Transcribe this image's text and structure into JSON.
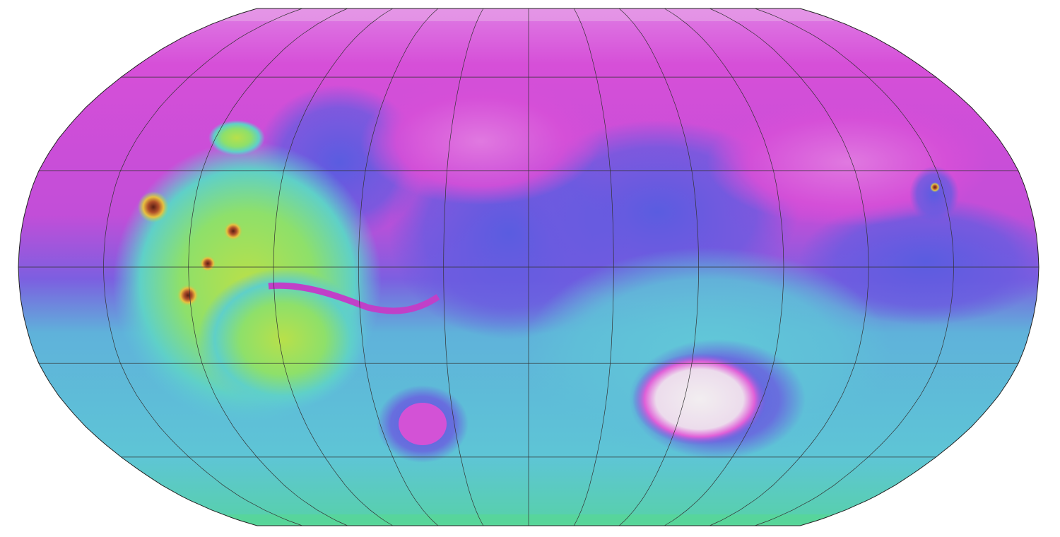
{
  "map": {
    "projection": "robinson",
    "graticule_spacing_deg": 30,
    "graticule_color": "#333333",
    "colors": {
      "lowest": "#e9e3ee",
      "very_low": "#d84fd6",
      "low": "#6a5be0",
      "mid": "#5fc8d8",
      "high": "#8ee06a",
      "higher": "#e8d050",
      "peak": "#7a2f1e"
    }
  }
}
